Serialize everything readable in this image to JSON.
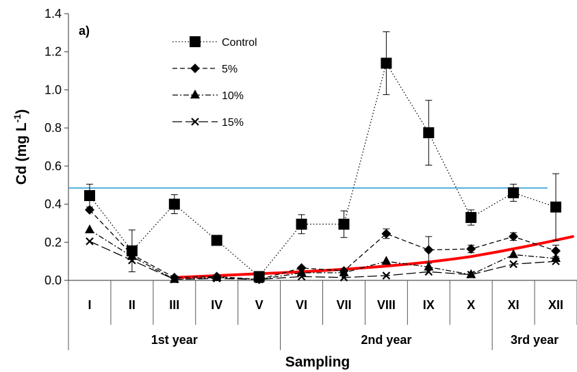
{
  "chart_data": {
    "type": "line",
    "panel_label": "a)",
    "ylabel_main": "Cd (mg L",
    "ylabel_sup": "-1",
    "ylabel_close": ")",
    "xlabel": "Sampling",
    "ylim": [
      0,
      1.4
    ],
    "yticks": [
      "0.0",
      "0.2",
      "0.4",
      "0.6",
      "0.8",
      "1.0",
      "1.2",
      "1.4"
    ],
    "categories": [
      "I",
      "II",
      "III",
      "IV",
      "V",
      "VI",
      "VII",
      "VIII",
      "IX",
      "X",
      "XI",
      "XII"
    ],
    "groups": [
      {
        "label": "1st year",
        "start": 0,
        "end": 4
      },
      {
        "label": "2nd year",
        "start": 5,
        "end": 9
      },
      {
        "label": "3rd year",
        "start": 10,
        "end": 11
      }
    ],
    "series": [
      {
        "name": "Control",
        "marker": "square",
        "dash": "1.5,3",
        "values": [
          0.445,
          0.155,
          0.4,
          0.21,
          0.02,
          0.295,
          0.295,
          1.14,
          0.775,
          0.33,
          0.46,
          0.385
        ],
        "errors": [
          0.06,
          0.11,
          0.05,
          0.02,
          0.0,
          0.05,
          0.07,
          0.165,
          0.17,
          0.04,
          0.045,
          0.175
        ]
      },
      {
        "name": "5%",
        "marker": "diamond",
        "dash": "7,4",
        "values": [
          0.37,
          0.135,
          0.015,
          0.02,
          0.005,
          0.065,
          0.05,
          0.245,
          0.16,
          0.165,
          0.23,
          0.155
        ],
        "errors": [
          0,
          0,
          0,
          0,
          0,
          0,
          0,
          0.025,
          0.07,
          0.02,
          0.02,
          0.03
        ]
      },
      {
        "name": "10%",
        "marker": "triangle",
        "dash": "8,3,2,3",
        "values": [
          0.265,
          0.125,
          0.005,
          0.015,
          0.005,
          0.04,
          0.04,
          0.1,
          0.07,
          0.03,
          0.135,
          0.115
        ],
        "errors": [
          0,
          0,
          0,
          0,
          0,
          0,
          0,
          0,
          0,
          0,
          0,
          0
        ]
      },
      {
        "name": "15%",
        "marker": "cross",
        "dash": "14,5",
        "values": [
          0.205,
          0.105,
          0.005,
          0.01,
          0.005,
          0.02,
          0.015,
          0.025,
          0.045,
          0.03,
          0.085,
          0.1
        ],
        "errors": [
          0,
          0,
          0,
          0,
          0,
          0,
          0,
          0,
          0,
          0,
          0,
          0
        ]
      }
    ],
    "reference_line": {
      "value": 0.485,
      "color": "#2e9fd6"
    },
    "trend_line": {
      "color": "#ff0000",
      "x_start": 2,
      "x_end": 11.4,
      "values_at": [
        [
          2,
          0.015
        ],
        [
          4,
          0.035
        ],
        [
          7,
          0.075
        ],
        [
          9,
          0.125
        ],
        [
          11.4,
          0.23
        ]
      ]
    },
    "legend": {
      "position": "top-left"
    }
  }
}
